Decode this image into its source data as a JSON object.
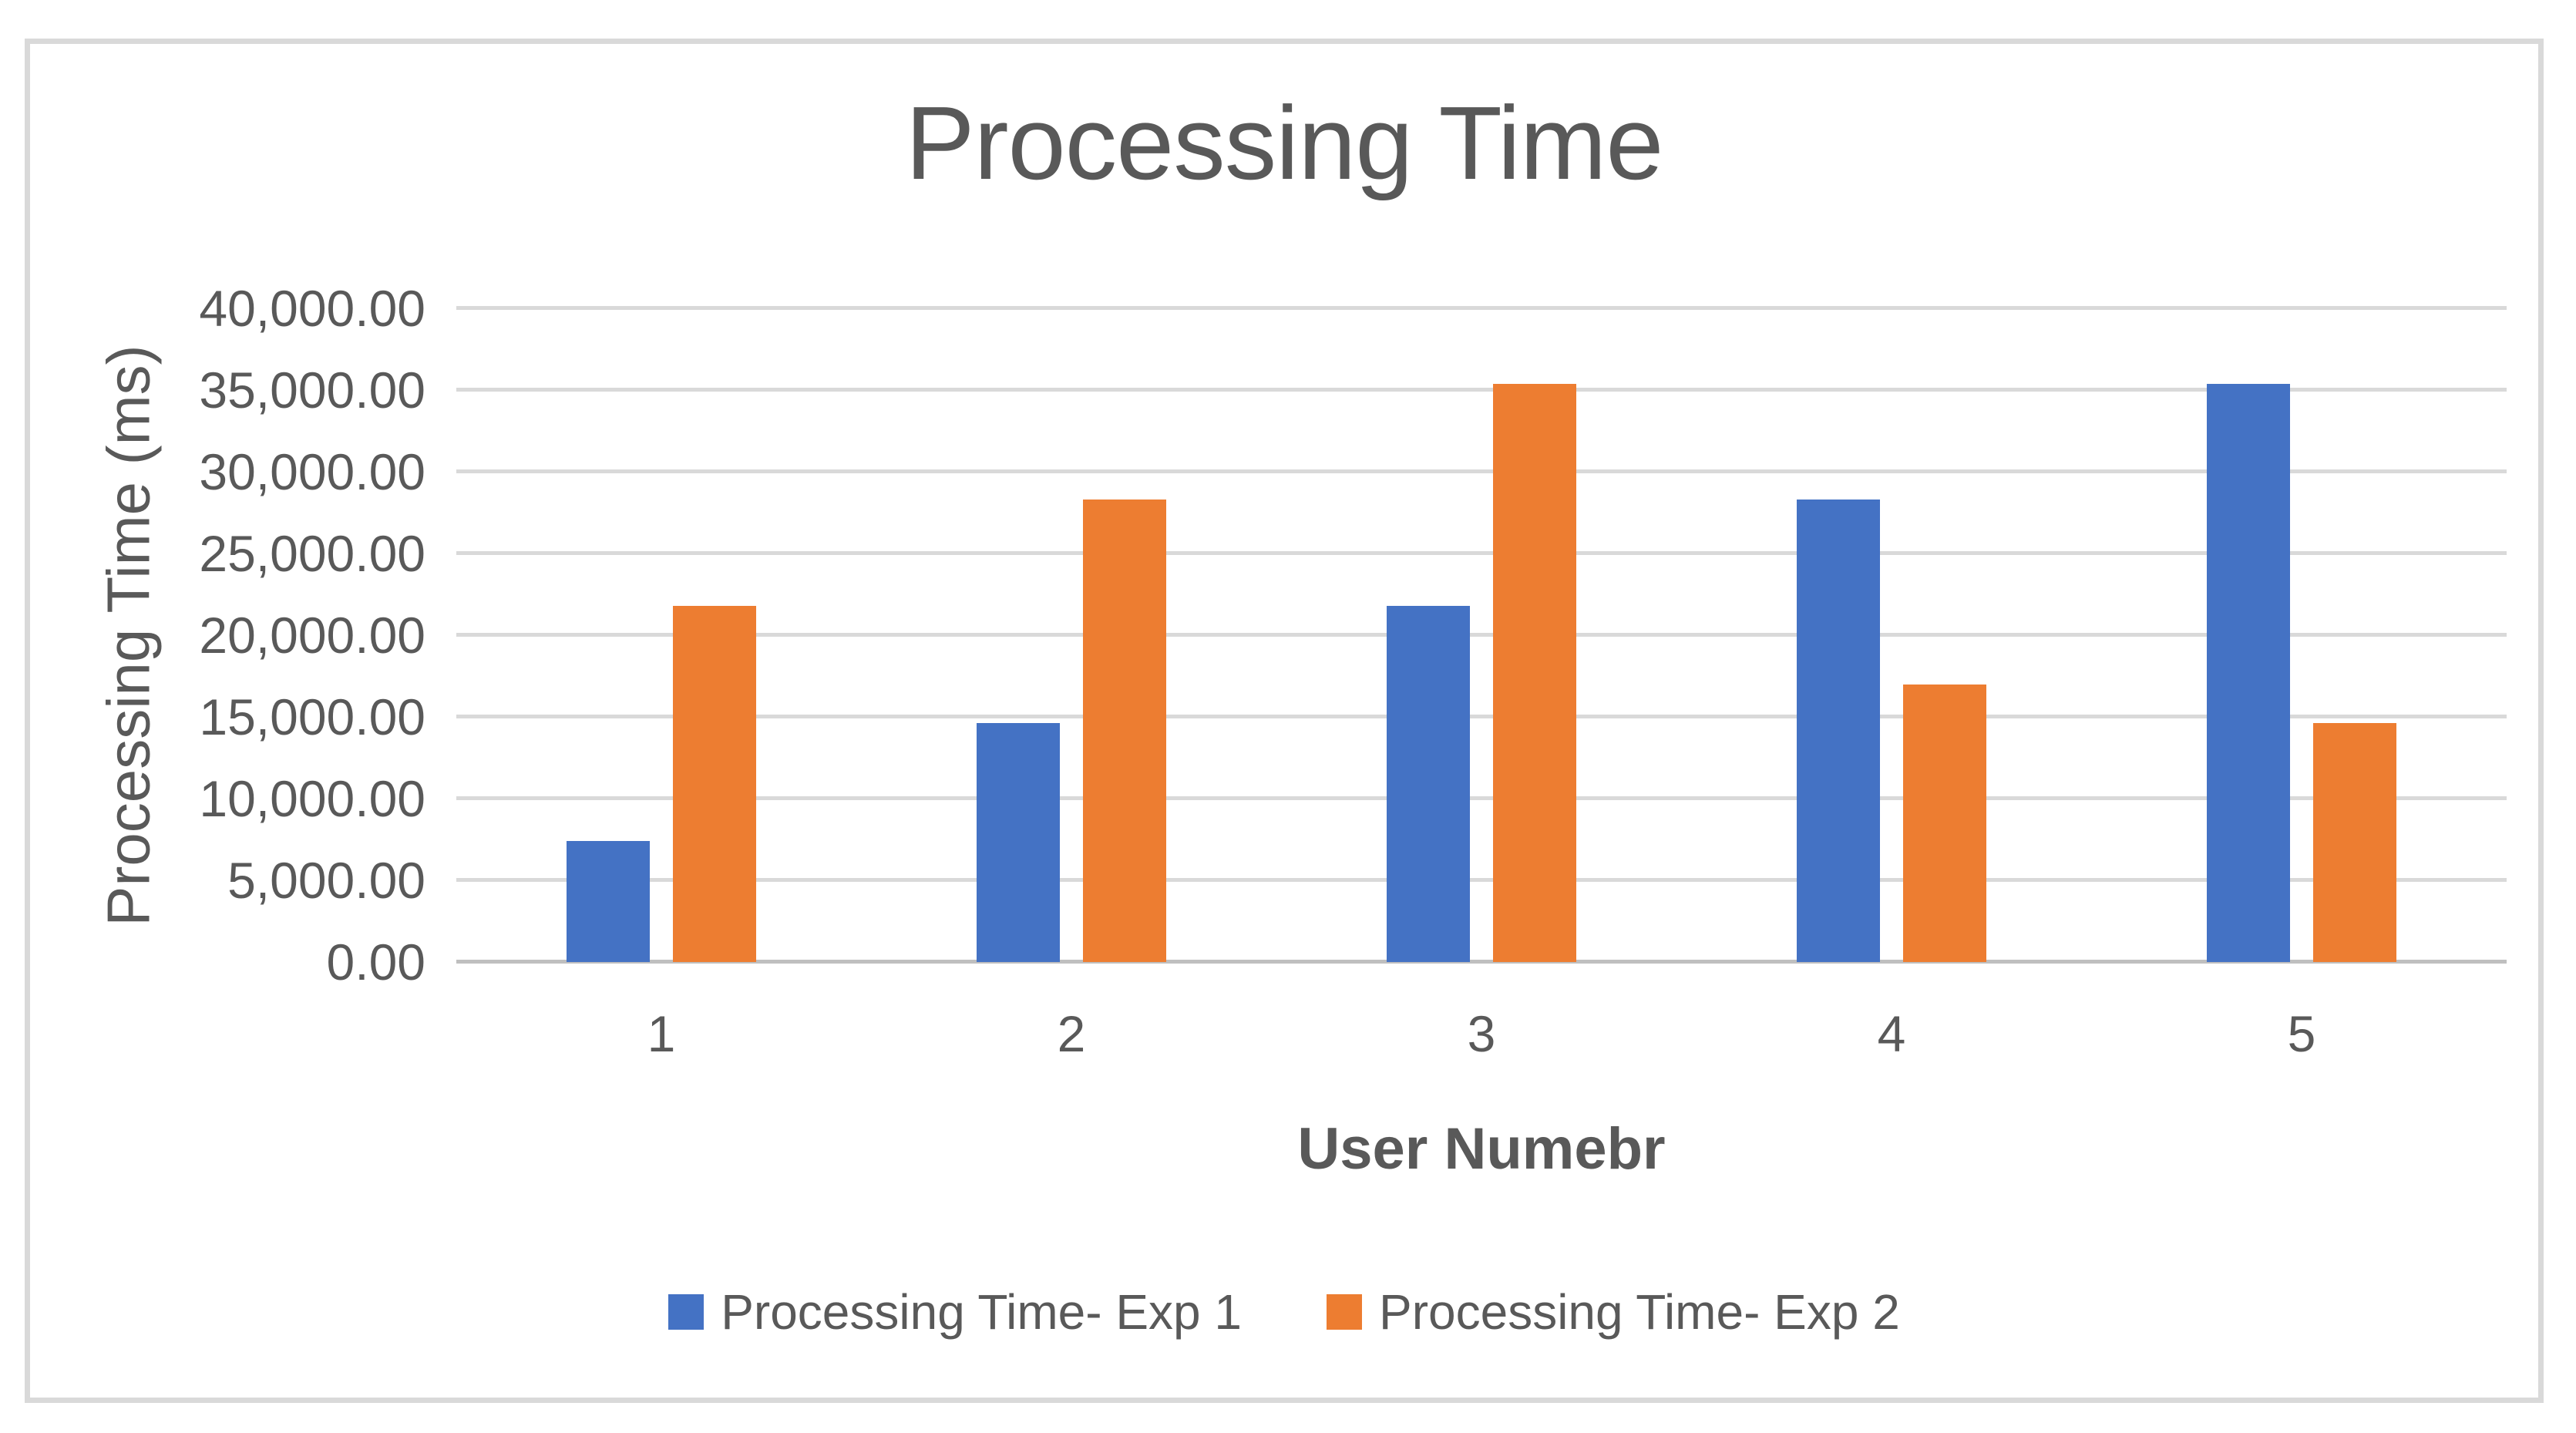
{
  "chart": {
    "title": "Processing Time",
    "colors": {
      "series1": "#4472C4",
      "series2": "#ED7D31",
      "text": "#595959",
      "gridline": "#D9D9D9",
      "axis_line": "#BFBFBF",
      "frame_border": "#D9D9D9",
      "background": "#FFFFFF"
    }
  },
  "chart_data": {
    "type": "bar",
    "title": "Processing Time",
    "categories": [
      "1",
      "2",
      "3",
      "4",
      "5"
    ],
    "series": [
      {
        "name": "Processing Time- Exp 1",
        "color": "#4472C4",
        "values": [
          7400,
          14600,
          21800,
          28300,
          35400
        ]
      },
      {
        "name": "Processing Time- Exp 2",
        "color": "#ED7D31",
        "values": [
          21800,
          28300,
          35400,
          17000,
          14600
        ]
      }
    ],
    "xlabel": "User Numebr",
    "ylabel": "Processing Time (ms)",
    "ylim": [
      0,
      40000
    ],
    "y_tick_step": 5000,
    "y_tick_labels": [
      "0.00",
      "5,000.00",
      "10,000.00",
      "15,000.00",
      "20,000.00",
      "25,000.00",
      "30,000.00",
      "35,000.00",
      "40,000.00"
    ],
    "grid": true,
    "legend_position": "bottom"
  }
}
